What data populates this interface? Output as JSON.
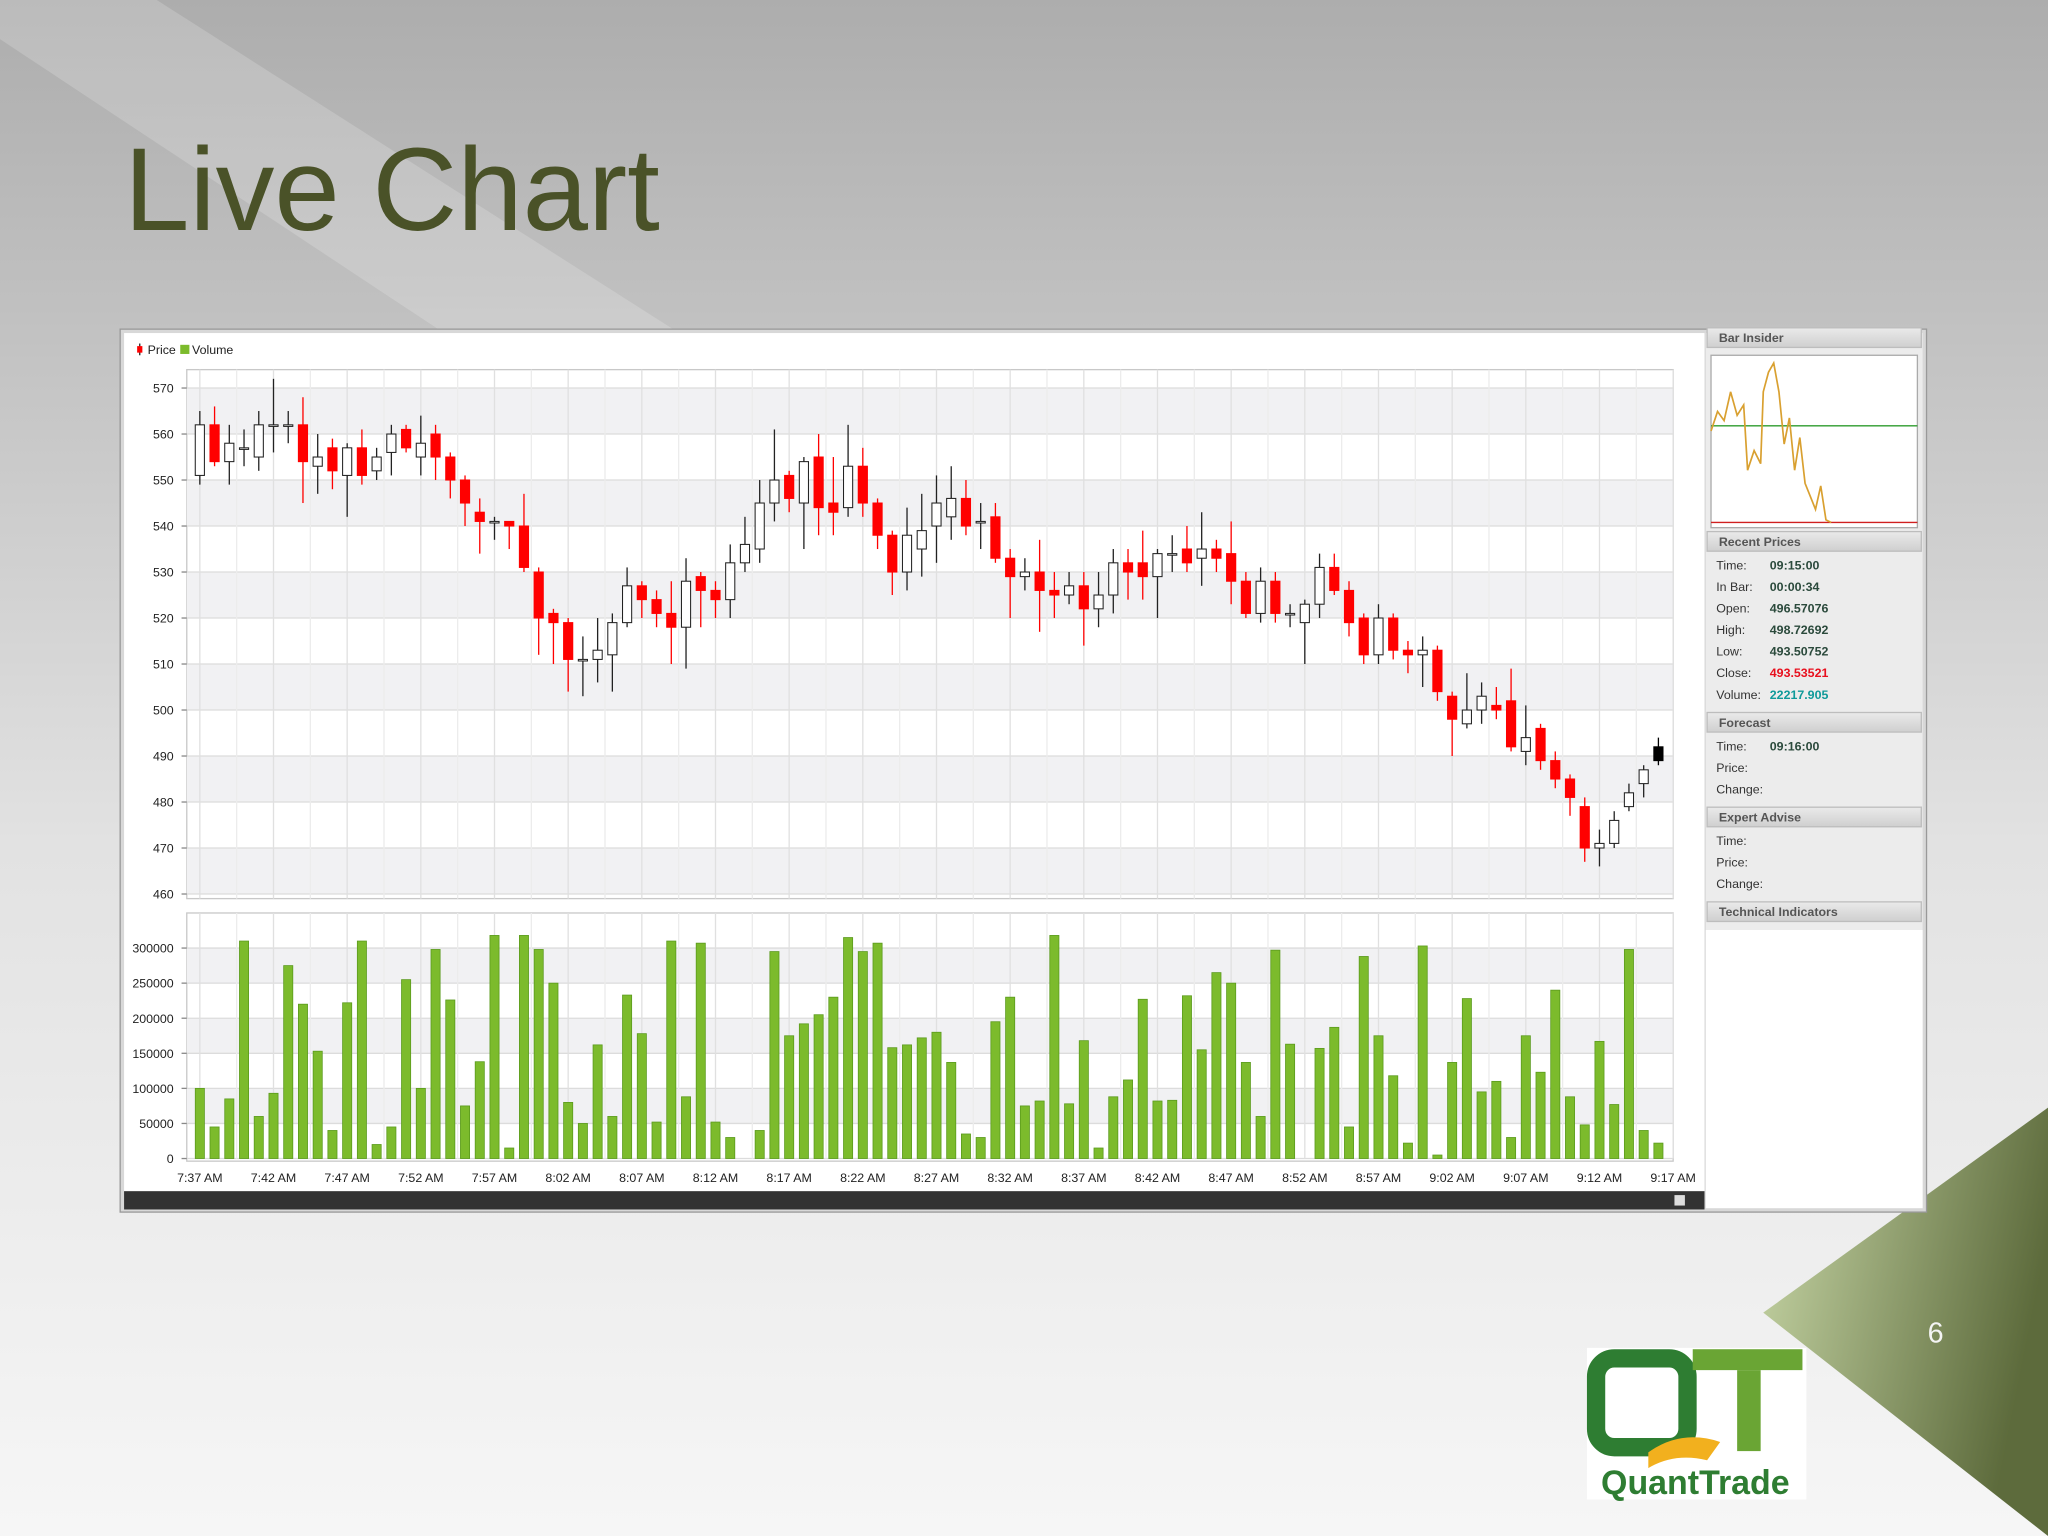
{
  "slide": {
    "title": "Live Chart",
    "page_number": "6",
    "logo_text": "QuantTrade"
  },
  "chart_data": {
    "type": "candlestick",
    "grid": true,
    "xtick_labels": [
      "7:37 AM",
      "7:42 AM",
      "7:47 AM",
      "7:52 AM",
      "7:57 AM",
      "8:02 AM",
      "8:07 AM",
      "8:12 AM",
      "8:17 AM",
      "8:22 AM",
      "8:27 AM",
      "8:32 AM",
      "8:37 AM",
      "8:42 AM",
      "8:47 AM",
      "8:52 AM",
      "8:57 AM",
      "9:02 AM",
      "9:07 AM",
      "9:12 AM",
      "9:17 AM"
    ],
    "price": {
      "name": "Price",
      "up_color": "#ffffff",
      "down_color": "#ff0000",
      "live_color": "#000000",
      "ylim": [
        459,
        574
      ],
      "yticks": [
        460,
        470,
        480,
        490,
        500,
        510,
        520,
        530,
        540,
        550,
        560,
        570
      ],
      "open": [
        551,
        562,
        554,
        557,
        555,
        562,
        562,
        562,
        553,
        557,
        551,
        557,
        552,
        556,
        561,
        555,
        560,
        555,
        550,
        543,
        541,
        541,
        540,
        530,
        521,
        519,
        511,
        511,
        512,
        519,
        527,
        524,
        521,
        518,
        529,
        526,
        524,
        532,
        535,
        545,
        551,
        545,
        555,
        545,
        544,
        553,
        545,
        538,
        530,
        535,
        540,
        542,
        546,
        541,
        542,
        533,
        529,
        530,
        526,
        525,
        527,
        522,
        525,
        532,
        532,
        529,
        534,
        535,
        533,
        535,
        534,
        528,
        521,
        528,
        521,
        519,
        523,
        531,
        526,
        520,
        512,
        520,
        513,
        512,
        513,
        503,
        497,
        500,
        501,
        502,
        491,
        496,
        489,
        485,
        479,
        470,
        471,
        479,
        484,
        492
      ],
      "high": [
        565,
        566,
        562,
        561,
        565,
        572,
        565,
        568,
        560,
        559,
        558,
        561,
        557,
        562,
        562,
        564,
        562,
        556,
        551,
        546,
        542,
        541,
        547,
        531,
        522,
        520,
        516,
        520,
        521,
        531,
        528,
        526,
        528,
        533,
        530,
        528,
        536,
        542,
        550,
        561,
        552,
        555,
        560,
        555,
        562,
        557,
        546,
        539,
        544,
        547,
        551,
        553,
        550,
        545,
        545,
        535,
        533,
        537,
        530,
        530,
        530,
        530,
        535,
        535,
        539,
        535,
        538,
        540,
        543,
        537,
        541,
        530,
        531,
        530,
        523,
        524,
        534,
        534,
        528,
        521,
        523,
        521,
        515,
        516,
        514,
        504,
        508,
        506,
        505,
        509,
        501,
        497,
        491,
        486,
        481,
        474,
        478,
        484,
        488,
        494
      ],
      "low": [
        549,
        553,
        549,
        553,
        552,
        556,
        558,
        545,
        547,
        548,
        542,
        549,
        550,
        551,
        556,
        551,
        550,
        546,
        540,
        534,
        537,
        535,
        530,
        512,
        510,
        504,
        503,
        506,
        504,
        518,
        520,
        518,
        510,
        509,
        518,
        520,
        520,
        530,
        532,
        541,
        543,
        535,
        538,
        538,
        542,
        542,
        535,
        525,
        526,
        529,
        532,
        537,
        538,
        535,
        532,
        520,
        526,
        517,
        520,
        523,
        514,
        518,
        521,
        524,
        524,
        520,
        530,
        530,
        527,
        530,
        523,
        520,
        519,
        519,
        518,
        510,
        520,
        525,
        516,
        510,
        510,
        511,
        508,
        505,
        502,
        490,
        496,
        497,
        498,
        491,
        488,
        487,
        483,
        477,
        467,
        466,
        470,
        478,
        481,
        488
      ],
      "close": [
        562,
        554,
        558,
        557,
        562,
        562,
        562,
        554,
        555,
        552,
        557,
        551,
        555,
        560,
        557,
        558,
        555,
        550,
        545,
        541,
        541,
        540,
        531,
        520,
        519,
        511,
        511,
        513,
        519,
        527,
        524,
        521,
        518,
        528,
        526,
        524,
        532,
        536,
        545,
        550,
        546,
        554,
        544,
        543,
        553,
        545,
        538,
        530,
        538,
        539,
        545,
        546,
        540,
        541,
        533,
        529,
        530,
        526,
        525,
        527,
        522,
        525,
        532,
        530,
        529,
        534,
        534,
        532,
        535,
        533,
        528,
        521,
        528,
        521,
        521,
        523,
        531,
        526,
        519,
        512,
        520,
        513,
        512,
        513,
        504,
        498,
        500,
        503,
        500,
        492,
        494,
        489,
        485,
        481,
        470,
        471,
        476,
        482,
        487,
        489
      ]
    },
    "volume": {
      "name": "Volume",
      "color": "#7cbb2c",
      "ylim": [
        0,
        350000
      ],
      "yticks": [
        0,
        50000,
        100000,
        150000,
        200000,
        250000,
        300000
      ],
      "values": [
        100000,
        45000,
        85000,
        310000,
        60000,
        93000,
        275000,
        220000,
        153000,
        40000,
        222000,
        310000,
        20000,
        45000,
        255000,
        100000,
        298000,
        226000,
        75000,
        138000,
        318000,
        15000,
        318000,
        298000,
        250000,
        80000,
        50000,
        162000,
        60000,
        233000,
        178000,
        52000,
        310000,
        88000,
        307000,
        52000,
        30000,
        0,
        40000,
        295000,
        175000,
        192000,
        205000,
        230000,
        315000,
        295000,
        307000,
        158000,
        162000,
        172000,
        180000,
        137000,
        35000,
        30000,
        195000,
        230000,
        75000,
        82000,
        318000,
        78000,
        168000,
        15000,
        88000,
        112000,
        227000,
        82000,
        83000,
        232000,
        155000,
        265000,
        250000,
        137000,
        60000,
        297000,
        163000,
        0,
        157000,
        187000,
        45000,
        288000,
        175000,
        118000,
        22000,
        303000,
        5000,
        137000,
        228000,
        95000,
        110000,
        30000,
        175000,
        123000,
        240000,
        88000,
        48000,
        167000,
        77000,
        298000,
        40000,
        22000
      ]
    }
  },
  "side_panel": {
    "bar_insider": "Bar Insider",
    "sections": [
      {
        "title": "Recent Prices",
        "rows": [
          {
            "label": "Time:",
            "value": "09:15:00",
            "color": "#2b4a3c"
          },
          {
            "label": "In Bar:",
            "value": "00:00:34",
            "color": "#2b4a3c"
          },
          {
            "label": "Open:",
            "value": "496.57076",
            "color": "#2b4a3c"
          },
          {
            "label": "High:",
            "value": "498.72692",
            "color": "#2b4a3c"
          },
          {
            "label": "Low:",
            "value": "493.50752",
            "color": "#2b4a3c"
          },
          {
            "label": "Close:",
            "value": "493.53521",
            "color": "#e8101e"
          },
          {
            "label": "Volume:",
            "value": "22217.905",
            "color": "#0f9a9a"
          }
        ]
      },
      {
        "title": "Forecast",
        "rows": [
          {
            "label": "Time:",
            "value": "09:16:00",
            "color": "#2b4a3c"
          },
          {
            "label": "Price:"
          },
          {
            "label": "Change:"
          }
        ]
      },
      {
        "title": "Expert Advise",
        "rows": [
          {
            "label": "Time:"
          },
          {
            "label": "Price:"
          },
          {
            "label": "Change:"
          }
        ]
      },
      {
        "title": "Technical Indicators",
        "rows": []
      }
    ]
  }
}
